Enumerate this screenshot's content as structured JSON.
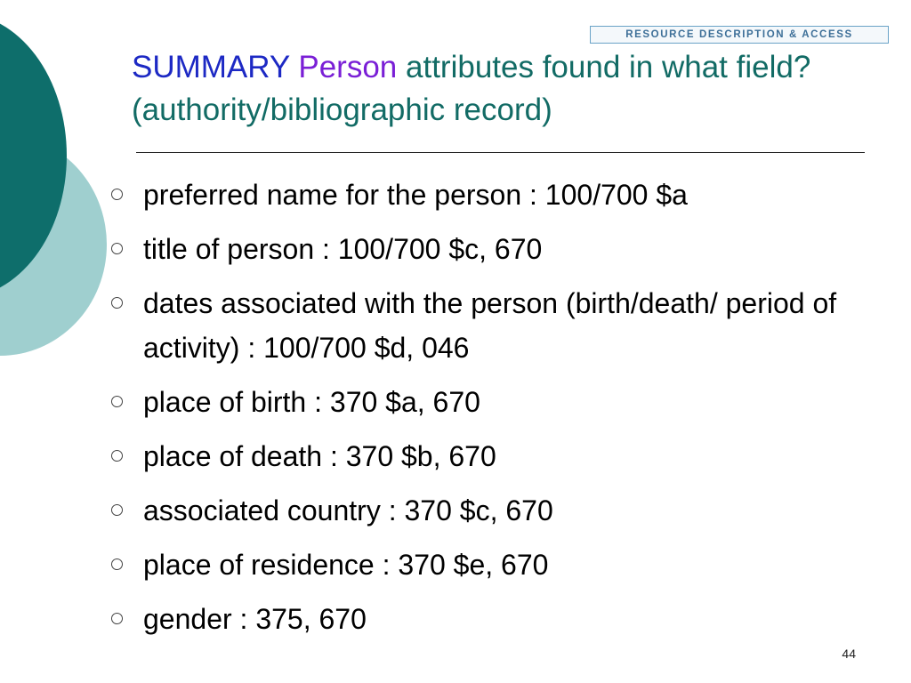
{
  "header": {
    "banner_text": "RESOURCE DESCRIPTION & ACCESS"
  },
  "title": {
    "part1": "SUMMARY",
    "part2": "Person",
    "part3": "attributes found in what field? (authority/bibliographic record)"
  },
  "bullets": [
    "preferred name for the person : 100/700 $a",
    "title of person : 100/700 $c, 670",
    "dates associated with the person (birth/death/ period of activity) : 100/700 $d, 046",
    "place of birth : 370 $a, 670",
    "place of death : 370 $b, 670",
    "associated country : 370 $c, 670",
    "place of residence : 370 $e, 670",
    "gender : 375, 670"
  ],
  "page_number": "44",
  "colors": {
    "dark_teal": "#0e6e6b",
    "light_teal": "#9fcfcf",
    "title_blue": "#1d29c4",
    "title_purple": "#7a1fd6",
    "title_teal": "#126b65"
  }
}
